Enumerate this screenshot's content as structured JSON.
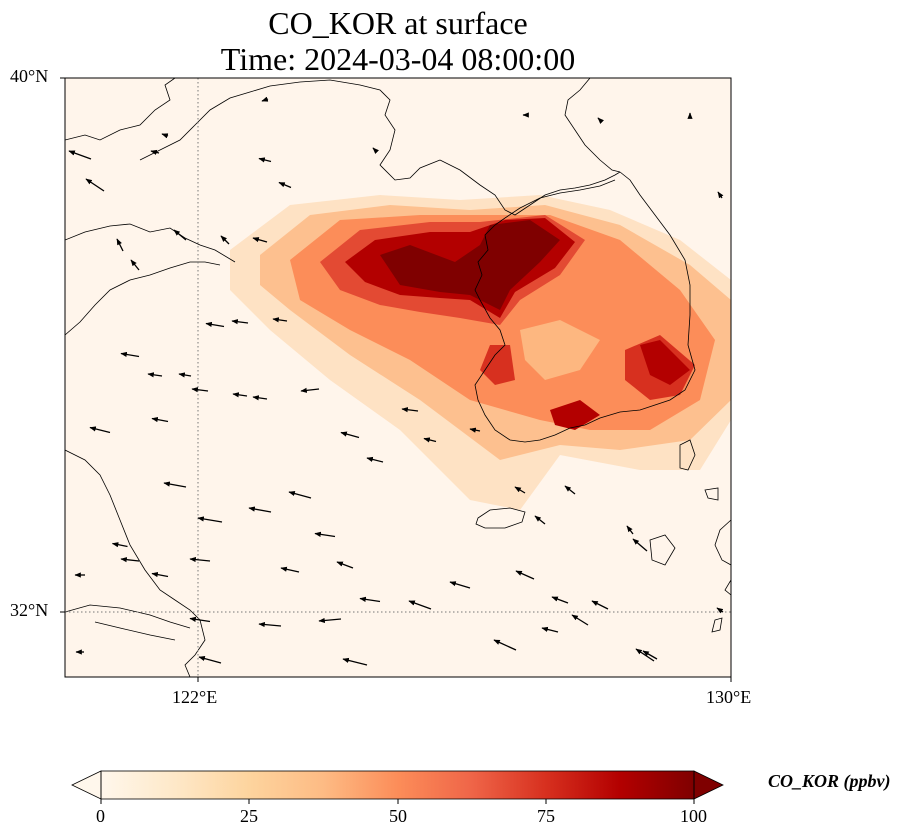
{
  "title": {
    "line1": "CO_KOR at surface",
    "line2": "Time: 2024-03-04 08:00:00"
  },
  "map": {
    "lon_range": [
      120,
      130
    ],
    "lat_range": [
      31,
      40
    ],
    "lat_ticks": [
      {
        "value": 40,
        "label": "40°N"
      },
      {
        "value": 32,
        "label": "32°N"
      }
    ],
    "lon_ticks": [
      {
        "value": 122,
        "label": "122°E"
      },
      {
        "value": 130,
        "label": "130°E"
      }
    ],
    "gridlines": {
      "lons": [
        122
      ],
      "lats": [
        32
      ],
      "style": "dotted"
    },
    "background_color": "#fff5eb",
    "coastline_color": "#000000",
    "wind_vectors": "black arrows mostly pointing west-northwest over the Yellow Sea"
  },
  "colorbar": {
    "label": "CO_KOR (ppbv)",
    "min": 0,
    "max": 100,
    "extend": "both",
    "ticks": [
      "0",
      "25",
      "50",
      "75",
      "100"
    ],
    "cmap": "OrRd",
    "colors": [
      "#fff7ec",
      "#fee8c8",
      "#fdd49e",
      "#fdbb84",
      "#fc8d59",
      "#ef6548",
      "#d7301f",
      "#b30000",
      "#7f0000"
    ]
  }
}
